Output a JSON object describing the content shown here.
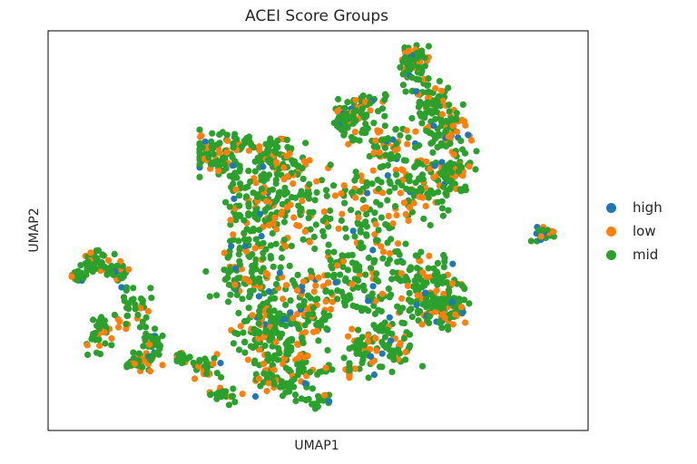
{
  "chart_data": {
    "type": "scatter",
    "title": "ACEI Score Groups",
    "xlabel": "UMAP1",
    "ylabel": "UMAP2",
    "xticks": [],
    "yticks": [],
    "grid": false,
    "legend": {
      "placement": "right-center",
      "entries": [
        "high",
        "low",
        "mid"
      ]
    },
    "categories": [
      "high",
      "low",
      "mid"
    ],
    "colors": {
      "high": "#1f77b4",
      "low": "#ff7f0e",
      "mid": "#2ca02c"
    },
    "regions": [
      {
        "name": "main-body",
        "x_range": [
          220,
          530
        ],
        "y_range": [
          140,
          450
        ],
        "approx_points": 1400
      },
      {
        "name": "upper-right-arm",
        "x_range": [
          355,
          525
        ],
        "y_range": [
          50,
          230
        ],
        "approx_points": 450
      },
      {
        "name": "left-cluster",
        "x_range": [
          78,
          185
        ],
        "y_range": [
          270,
          425
        ],
        "approx_points": 260
      },
      {
        "name": "bottom-tail",
        "x_range": [
          195,
          385
        ],
        "y_range": [
          360,
          455
        ],
        "approx_points": 160
      },
      {
        "name": "right-island",
        "x_range": [
          578,
          622
        ],
        "y_range": [
          243,
          272
        ],
        "approx_points": 25
      }
    ]
  }
}
